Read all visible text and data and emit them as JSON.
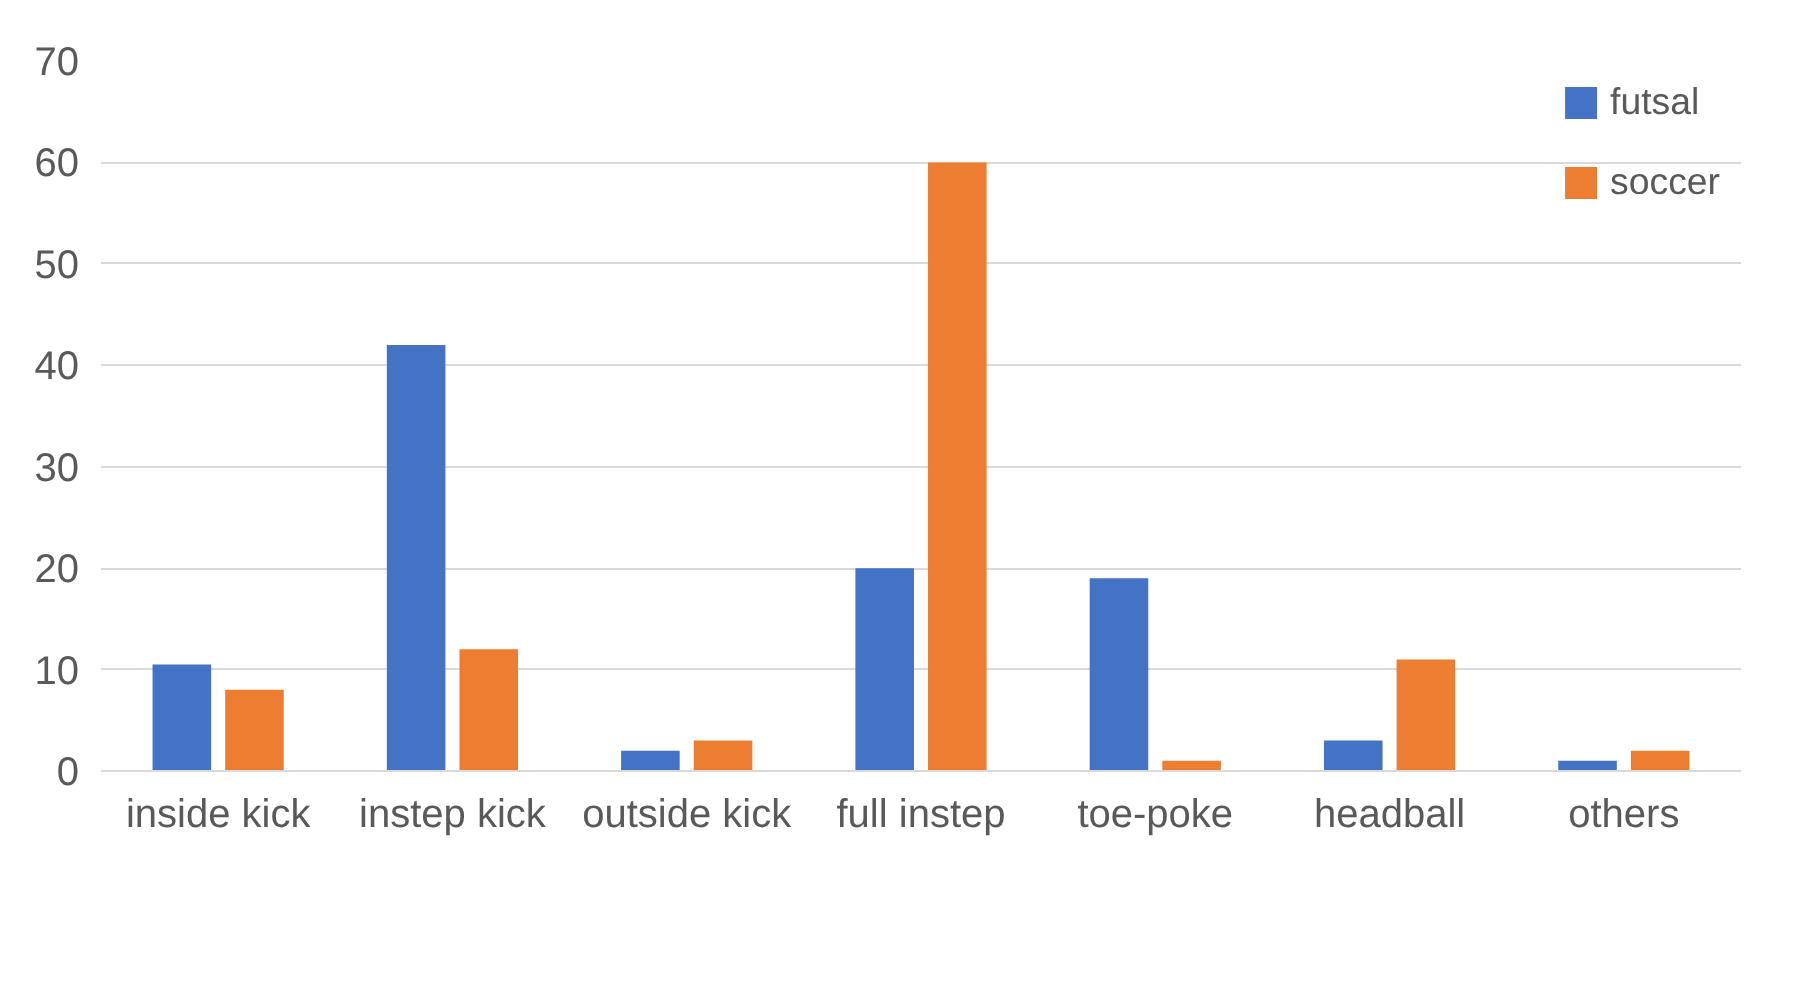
{
  "chart_data": {
    "type": "bar",
    "categories": [
      "inside kick",
      "instep kick",
      "outside kick",
      "full instep",
      "toe-poke",
      "headball",
      "others"
    ],
    "series": [
      {
        "name": "futsal",
        "color": "#4472c4",
        "values": [
          10.5,
          42,
          2,
          20,
          19,
          3,
          1
        ]
      },
      {
        "name": "soccer",
        "color": "#ed7d31",
        "values": [
          8,
          12,
          3,
          60,
          1,
          11,
          2
        ]
      }
    ],
    "ylim": [
      0,
      70
    ],
    "yticks": [
      0,
      10,
      20,
      30,
      40,
      50,
      60,
      70
    ],
    "grid": "y",
    "legend": "top right"
  }
}
